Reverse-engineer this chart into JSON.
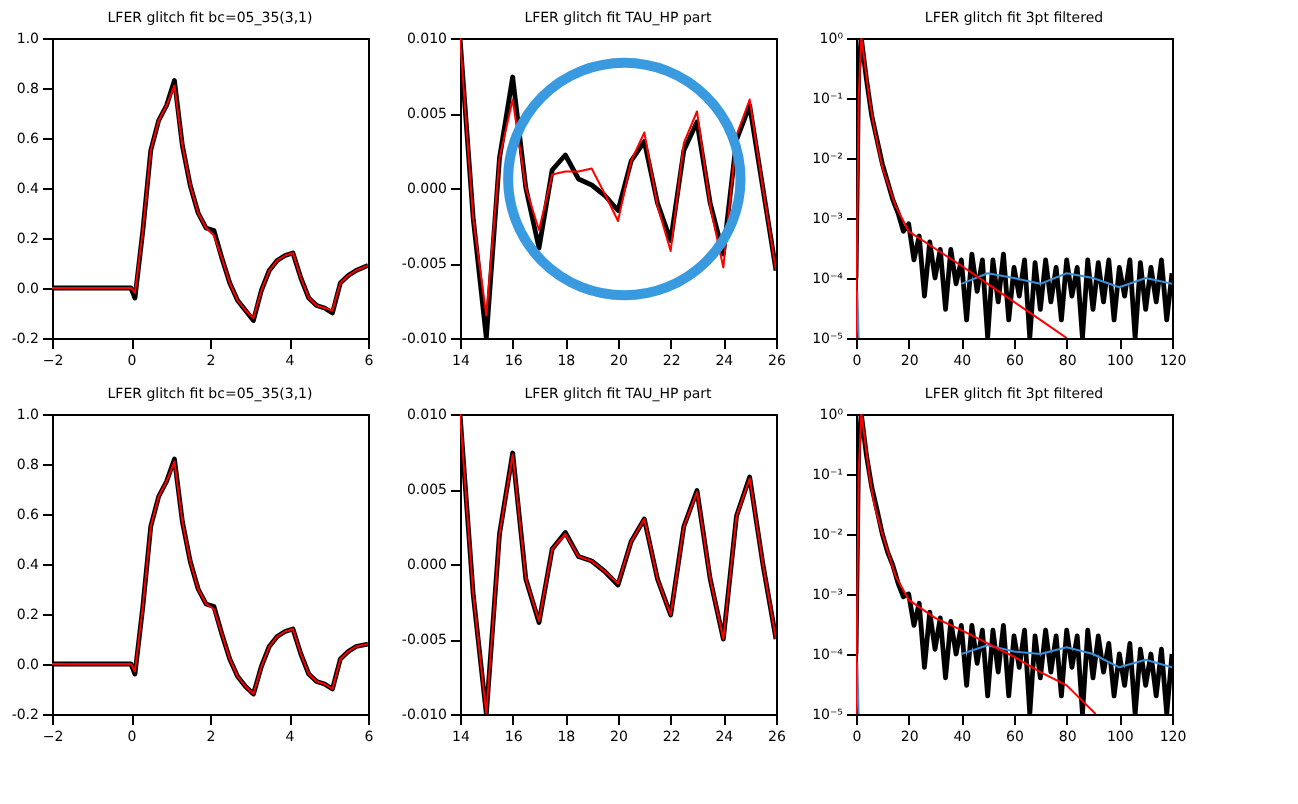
{
  "chart_data": [
    {
      "type": "line",
      "title": "LFER glitch fit bc=05_35(3,1)",
      "xlim": [
        -2,
        6
      ],
      "xticks": [
        -2,
        0,
        2,
        4,
        6
      ],
      "ylim": [
        -0.2,
        1.0
      ],
      "yticks": [
        {
          "value": -0.2,
          "label": "-0.2"
        },
        {
          "value": 0,
          "label": "0.0"
        },
        {
          "value": 0.2,
          "label": "0.2"
        },
        {
          "value": 0.4,
          "label": "0.4"
        },
        {
          "value": 0.6,
          "label": "0.6"
        },
        {
          "value": 0.8,
          "label": "0.8"
        },
        {
          "value": 1.0,
          "label": "1.0"
        }
      ],
      "series": [
        {
          "color": "#000000",
          "x": [
            -2,
            -1,
            0,
            0.1,
            0.3,
            0.5,
            0.7,
            0.9,
            1.1,
            1.3,
            1.5,
            1.7,
            1.9,
            2.1,
            2.3,
            2.5,
            2.7,
            2.9,
            3.1,
            3.3,
            3.5,
            3.7,
            3.9,
            4.1,
            4.3,
            4.5,
            4.7,
            4.9,
            5.1,
            5.3,
            5.5,
            5.7,
            6
          ],
          "values": [
            0,
            0,
            0,
            -0.04,
            0.23,
            0.55,
            0.67,
            0.73,
            0.83,
            0.57,
            0.41,
            0.3,
            0.24,
            0.23,
            0.12,
            0.02,
            -0.05,
            -0.09,
            -0.13,
            -0.01,
            0.07,
            0.11,
            0.13,
            0.14,
            0.04,
            -0.04,
            -0.07,
            -0.08,
            -0.1,
            0.02,
            0.05,
            0.07,
            0.09
          ]
        },
        {
          "color": "#ff0000",
          "x": [
            -2,
            -1,
            0,
            0.1,
            0.3,
            0.5,
            0.7,
            0.9,
            1.1,
            1.3,
            1.5,
            1.7,
            1.9,
            2.1,
            2.3,
            2.5,
            2.7,
            2.9,
            3.1,
            3.3,
            3.5,
            3.7,
            3.9,
            4.1,
            4.3,
            4.5,
            4.7,
            4.9,
            5.1,
            5.3,
            5.5,
            5.7,
            6
          ],
          "values": [
            0,
            0,
            0,
            -0.02,
            0.23,
            0.55,
            0.67,
            0.73,
            0.81,
            0.57,
            0.41,
            0.3,
            0.24,
            0.21,
            0.12,
            0.02,
            -0.05,
            -0.09,
            -0.12,
            -0.01,
            0.07,
            0.11,
            0.13,
            0.14,
            0.04,
            -0.04,
            -0.07,
            -0.08,
            -0.09,
            0.02,
            0.05,
            0.07,
            0.09
          ]
        }
      ]
    },
    {
      "type": "line",
      "title": "LFER glitch fit TAU_HP part",
      "xlim": [
        14,
        26
      ],
      "xticks": [
        14,
        16,
        18,
        20,
        22,
        24,
        26
      ],
      "ylim": [
        -0.01,
        0.01
      ],
      "yticks": [
        {
          "value": -0.01,
          "label": "-0.010"
        },
        {
          "value": -0.005,
          "label": "-0.005"
        },
        {
          "value": 0,
          "label": "0.000"
        },
        {
          "value": 0.005,
          "label": "0.005"
        },
        {
          "value": 0.01,
          "label": "0.010"
        }
      ],
      "series": [
        {
          "color": "#000000",
          "x": [
            14,
            14.5,
            15,
            15.5,
            16,
            16.5,
            17,
            17.5,
            18,
            18.5,
            19,
            19.5,
            20,
            20.5,
            21,
            21.5,
            22,
            22.5,
            23,
            23.5,
            24,
            24.5,
            25,
            25.5,
            26
          ],
          "values": [
            0.01,
            -0.002,
            -0.01,
            0.002,
            0.0074,
            0.0,
            -0.004,
            0.0012,
            0.0022,
            0.0006,
            0.0002,
            -0.0005,
            -0.0015,
            0.0018,
            0.0031,
            -0.001,
            -0.0035,
            0.0025,
            0.0044,
            -0.001,
            -0.0044,
            0.0032,
            0.0055,
            0.0,
            -0.0055
          ]
        },
        {
          "color": "#ff0000",
          "x": [
            14,
            14.5,
            15,
            15.5,
            16,
            16.5,
            17,
            17.5,
            18,
            18.5,
            19,
            19.5,
            20,
            20.5,
            21,
            21.5,
            22,
            22.5,
            23,
            23.5,
            24,
            24.5,
            25,
            25.5,
            26
          ],
          "values": [
            0.01,
            -0.002,
            -0.0085,
            0.002,
            0.0059,
            0.0,
            -0.0028,
            0.0009,
            0.0011,
            0.0011,
            0.0013,
            -0.0004,
            -0.0022,
            0.0018,
            0.0037,
            -0.0012,
            -0.0042,
            0.003,
            0.0051,
            -0.0012,
            -0.0053,
            0.0035,
            0.0059,
            0.0,
            -0.0055
          ]
        }
      ]
    },
    {
      "type": "line",
      "title": "LFER glitch fit 3pt filtered",
      "log": "y",
      "xlim": [
        0,
        120
      ],
      "xticks": [
        0,
        20,
        40,
        60,
        80,
        100,
        120
      ],
      "ylim": [
        1e-05,
        1
      ],
      "yticks": [
        {
          "value": 1e-05,
          "label": "10⁻⁵"
        },
        {
          "value": 0.0001,
          "label": "10⁻⁴"
        },
        {
          "value": 0.001,
          "label": "10⁻³"
        },
        {
          "value": 0.01,
          "label": "10⁻²"
        },
        {
          "value": 0.1,
          "label": "10⁻¹"
        },
        {
          "value": 1,
          "label": "10⁰"
        }
      ],
      "series": [
        {
          "color": "#000000",
          "x": [
            0,
            1,
            2,
            4,
            6,
            8,
            10,
            12,
            14,
            16,
            18,
            20,
            22,
            24,
            26,
            28,
            30,
            32,
            34,
            36,
            38,
            40,
            42,
            44,
            46,
            48,
            50,
            52,
            54,
            56,
            58,
            60,
            62,
            64,
            66,
            68,
            70,
            72,
            74,
            76,
            78,
            80,
            82,
            84,
            86,
            88,
            90,
            92,
            94,
            96,
            98,
            100,
            102,
            104,
            106,
            108,
            110,
            112,
            114,
            116,
            118,
            120
          ],
          "values": [
            0.0001,
            0.3,
            1,
            0.2,
            0.05,
            0.02,
            0.008,
            0.004,
            0.002,
            0.0012,
            0.0006,
            0.0008,
            0.0002,
            0.0005,
            5e-05,
            0.0004,
            0.0001,
            0.0003,
            3e-05,
            0.0003,
            8e-05,
            0.0002,
            2e-05,
            0.00025,
            6e-05,
            0.0002,
            1e-05,
            0.0002,
            4e-05,
            0.00025,
            2e-05,
            0.00015,
            5e-05,
            0.0002,
            1e-05,
            0.00018,
            3e-05,
            0.0002,
            4e-05,
            0.00015,
            2e-05,
            0.0002,
            5e-05,
            0.00015,
            1e-05,
            0.0002,
            3e-05,
            0.00018,
            4e-05,
            0.0002,
            2e-05,
            0.00015,
            5e-05,
            0.0002,
            1e-05,
            0.00018,
            3e-05,
            0.00015,
            4e-05,
            0.0002,
            2e-05,
            0.00012
          ]
        },
        {
          "color": "#3a8fd9",
          "x": [
            0,
            0.5,
            1,
            2,
            40,
            50,
            60,
            70,
            80,
            90,
            100,
            110,
            120
          ],
          "values": [
            1e-05,
            6e-05,
            1e-05,
            null,
            8e-05,
            0.00012,
            0.0001,
            8e-05,
            0.00012,
            0.0001,
            7e-05,
            0.0001,
            8e-05
          ]
        },
        {
          "color": "#ff0000",
          "x": [
            0,
            1,
            2,
            3,
            5,
            7,
            10,
            15,
            20,
            30,
            40,
            50,
            60,
            70,
            80
          ],
          "values": [
            1e-05,
            0.1,
            1,
            0.5,
            0.1,
            0.03,
            0.007,
            0.0016,
            0.0006,
            0.00031,
            0.00016,
            8e-05,
            4e-05,
            2e-05,
            1e-05
          ]
        }
      ]
    },
    {
      "type": "line",
      "title": "LFER glitch fit bc=05_35(3,1)",
      "xlim": [
        -2,
        6
      ],
      "xticks": [
        -2,
        0,
        2,
        4,
        6
      ],
      "ylim": [
        -0.2,
        1.0
      ],
      "yticks": [
        {
          "value": -0.2,
          "label": "-0.2"
        },
        {
          "value": 0,
          "label": "0.0"
        },
        {
          "value": 0.2,
          "label": "0.2"
        },
        {
          "value": 0.4,
          "label": "0.4"
        },
        {
          "value": 0.6,
          "label": "0.6"
        },
        {
          "value": 0.8,
          "label": "0.8"
        },
        {
          "value": 1.0,
          "label": "1.0"
        }
      ],
      "series": [
        {
          "color": "#000000",
          "x": [
            -2,
            -1,
            0,
            0.1,
            0.3,
            0.5,
            0.7,
            0.9,
            1.1,
            1.3,
            1.5,
            1.7,
            1.9,
            2.1,
            2.3,
            2.5,
            2.7,
            2.9,
            3.1,
            3.3,
            3.5,
            3.7,
            3.9,
            4.1,
            4.3,
            4.5,
            4.7,
            4.9,
            5.1,
            5.3,
            5.5,
            5.7,
            6
          ],
          "values": [
            0,
            0,
            0,
            -0.04,
            0.23,
            0.55,
            0.67,
            0.73,
            0.82,
            0.57,
            0.41,
            0.3,
            0.24,
            0.23,
            0.12,
            0.02,
            -0.05,
            -0.09,
            -0.12,
            -0.01,
            0.07,
            0.11,
            0.13,
            0.14,
            0.04,
            -0.04,
            -0.07,
            -0.08,
            -0.1,
            0.02,
            0.05,
            0.07,
            0.08
          ]
        },
        {
          "color": "#ff0000",
          "x": [
            -2,
            -1,
            0,
            0.1,
            0.3,
            0.5,
            0.7,
            0.9,
            1.1,
            1.3,
            1.5,
            1.7,
            1.9,
            2.1,
            2.3,
            2.5,
            2.7,
            2.9,
            3.1,
            3.3,
            3.5,
            3.7,
            3.9,
            4.1,
            4.3,
            4.5,
            4.7,
            4.9,
            5.1,
            5.3,
            5.5,
            5.7,
            6
          ],
          "values": [
            0,
            0,
            0,
            -0.03,
            0.23,
            0.55,
            0.67,
            0.73,
            0.81,
            0.57,
            0.41,
            0.3,
            0.24,
            0.22,
            0.12,
            0.02,
            -0.05,
            -0.09,
            -0.12,
            -0.01,
            0.07,
            0.11,
            0.13,
            0.14,
            0.04,
            -0.04,
            -0.07,
            -0.08,
            -0.1,
            0.02,
            0.05,
            0.07,
            0.08
          ]
        }
      ]
    },
    {
      "type": "line",
      "title": "LFER glitch fit TAU_HP part",
      "xlim": [
        14,
        26
      ],
      "xticks": [
        14,
        16,
        18,
        20,
        22,
        24,
        26
      ],
      "ylim": [
        -0.01,
        0.01
      ],
      "yticks": [
        {
          "value": -0.01,
          "label": "-0.010"
        },
        {
          "value": -0.005,
          "label": "-0.005"
        },
        {
          "value": 0,
          "label": "0.000"
        },
        {
          "value": 0.005,
          "label": "0.005"
        },
        {
          "value": 0.01,
          "label": "0.010"
        }
      ],
      "series": [
        {
          "color": "#000000",
          "x": [
            14,
            14.5,
            15,
            15.5,
            16,
            16.5,
            17,
            17.5,
            18,
            18.5,
            19,
            19.5,
            20,
            20.5,
            21,
            21.5,
            22,
            22.5,
            23,
            23.5,
            24,
            24.5,
            25,
            25.5,
            26
          ],
          "values": [
            0.01,
            -0.002,
            -0.01,
            0.002,
            0.0074,
            -0.001,
            -0.0039,
            0.001,
            0.0021,
            0.0005,
            0.0002,
            -0.0005,
            -0.0014,
            0.0015,
            0.003,
            -0.001,
            -0.0034,
            0.0025,
            0.0049,
            -0.001,
            -0.005,
            0.0032,
            0.0058,
            0.0,
            -0.005
          ]
        },
        {
          "color": "#ff0000",
          "x": [
            14,
            14.5,
            15,
            15.5,
            16,
            16.5,
            17,
            17.5,
            18,
            18.5,
            19,
            19.5,
            20,
            20.5,
            21,
            21.5,
            22,
            22.5,
            23,
            23.5,
            24,
            24.5,
            25,
            25.5,
            26
          ],
          "values": [
            0.01,
            -0.002,
            -0.01,
            0.002,
            0.0073,
            -0.001,
            -0.0038,
            0.001,
            0.002,
            0.0005,
            0.0002,
            -0.0005,
            -0.0013,
            0.0015,
            0.003,
            -0.001,
            -0.0034,
            0.0025,
            0.0048,
            -0.001,
            -0.005,
            0.0032,
            0.0057,
            0.0,
            -0.005
          ]
        }
      ]
    },
    {
      "type": "line",
      "title": "LFER glitch fit 3pt filtered",
      "log": "y",
      "xlim": [
        0,
        120
      ],
      "xticks": [
        0,
        20,
        40,
        60,
        80,
        100,
        120
      ],
      "ylim": [
        1e-05,
        1
      ],
      "yticks": [
        {
          "value": 1e-05,
          "label": "10⁻⁵"
        },
        {
          "value": 0.0001,
          "label": "10⁻⁴"
        },
        {
          "value": 0.001,
          "label": "10⁻³"
        },
        {
          "value": 0.01,
          "label": "10⁻²"
        },
        {
          "value": 0.1,
          "label": "10⁻¹"
        },
        {
          "value": 1,
          "label": "10⁰"
        }
      ],
      "series": [
        {
          "color": "#000000",
          "x": [
            0,
            1,
            2,
            4,
            6,
            8,
            10,
            12,
            14,
            16,
            18,
            20,
            22,
            24,
            26,
            28,
            30,
            32,
            34,
            36,
            38,
            40,
            42,
            44,
            46,
            48,
            50,
            52,
            54,
            56,
            58,
            60,
            62,
            64,
            66,
            68,
            70,
            72,
            74,
            76,
            78,
            80,
            82,
            84,
            86,
            88,
            90,
            92,
            94,
            96,
            98,
            100,
            102,
            104,
            106,
            108,
            110,
            112,
            114,
            116,
            118,
            120
          ],
          "values": [
            0.0001,
            0.3,
            1,
            0.2,
            0.06,
            0.025,
            0.01,
            0.005,
            0.003,
            0.0015,
            0.0009,
            0.001,
            0.0003,
            0.0007,
            6e-05,
            0.0005,
            0.00012,
            0.0004,
            4e-05,
            0.00035,
            0.0001,
            0.0003,
            3e-05,
            0.0003,
            7e-05,
            0.00025,
            2e-05,
            0.00025,
            5e-05,
            0.0003,
            2e-05,
            0.0002,
            6e-05,
            0.00025,
            1e-05,
            0.0002,
            4e-05,
            0.00025,
            5e-05,
            0.0002,
            2e-05,
            0.00025,
            6e-05,
            0.0002,
            1e-05,
            0.00025,
            4e-05,
            0.0002,
            5e-05,
            0.00015,
            2e-05,
            0.0001,
            3e-05,
            0.00015,
            1e-05,
            0.00012,
            3e-05,
            0.0001,
            2e-05,
            0.00012,
            1e-05,
            0.0001
          ]
        },
        {
          "color": "#3a8fd9",
          "x": [
            0,
            0.5,
            1,
            2,
            40,
            50,
            60,
            70,
            80,
            90,
            100,
            110,
            120
          ],
          "values": [
            1e-05,
            7e-05,
            1e-05,
            null,
            0.0001,
            0.00014,
            0.00011,
            0.0001,
            0.00013,
            0.0001,
            6e-05,
            8e-05,
            6e-05
          ]
        },
        {
          "color": "#ff0000",
          "x": [
            0,
            1,
            2,
            3,
            5,
            7,
            10,
            15,
            20,
            30,
            40,
            50,
            60,
            70,
            80,
            91
          ],
          "values": [
            1e-05,
            0.1,
            1,
            0.5,
            0.1,
            0.03,
            0.01,
            0.002,
            0.0008,
            0.0004,
            0.00025,
            0.00015,
            9e-05,
            5e-05,
            3e-05,
            1e-05
          ]
        }
      ]
    }
  ]
}
